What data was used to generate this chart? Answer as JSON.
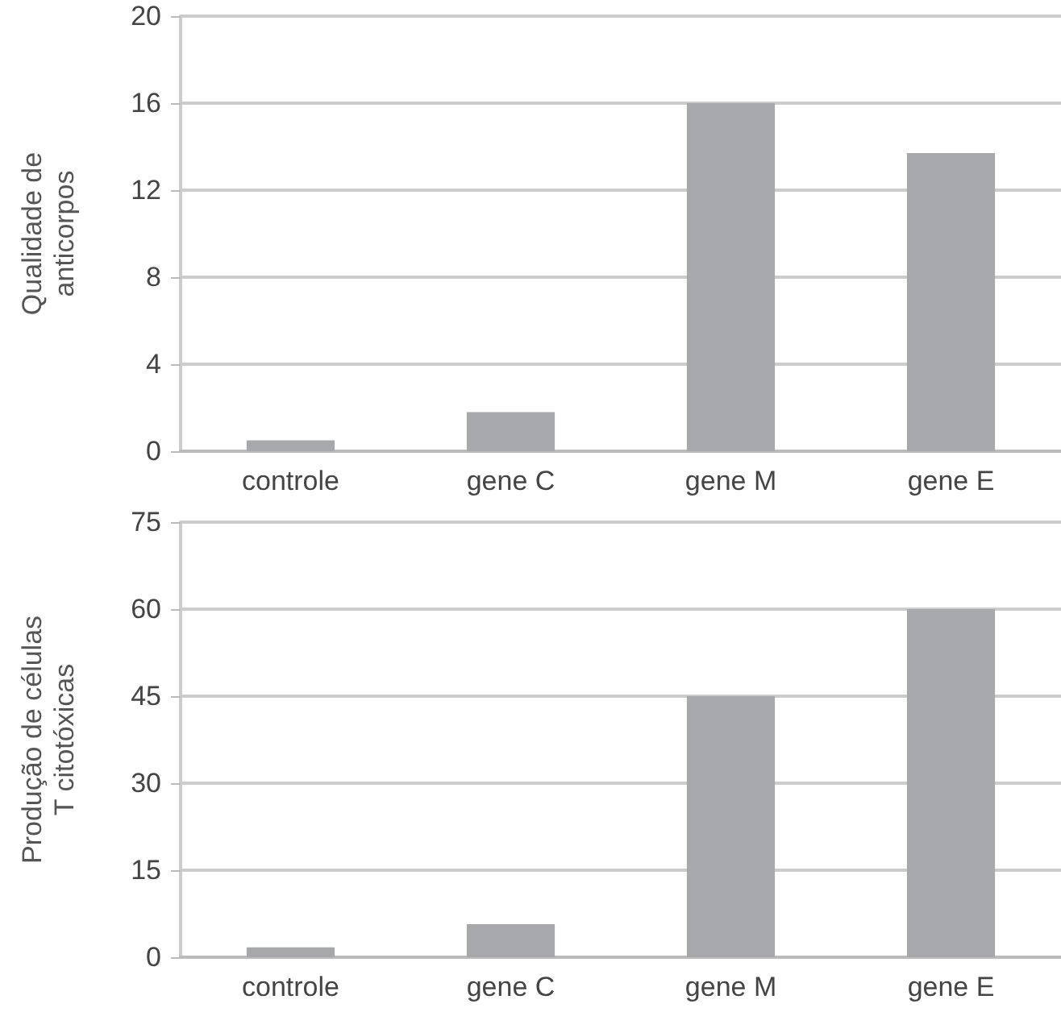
{
  "chart_data": [
    {
      "type": "bar",
      "ylabel": "Qualidade de\nanticorpos",
      "categories": [
        "controle",
        "gene C",
        "gene M",
        "gene E"
      ],
      "values": [
        0.5,
        1.8,
        16,
        13.7
      ],
      "color": "#a7a8ab",
      "ylim": [
        0,
        20
      ],
      "yticks": [
        0,
        4,
        8,
        12,
        16,
        20
      ],
      "grid": "y"
    },
    {
      "type": "bar",
      "ylabel": "Produção de células\nT citotóxicas",
      "categories": [
        "controle",
        "gene C",
        "gene M",
        "gene E"
      ],
      "values": [
        1.7,
        5.7,
        45,
        60
      ],
      "color": "#a7a8ab",
      "ylim": [
        0,
        75
      ],
      "yticks": [
        0,
        15,
        30,
        45,
        60,
        75
      ],
      "grid": "y"
    }
  ]
}
